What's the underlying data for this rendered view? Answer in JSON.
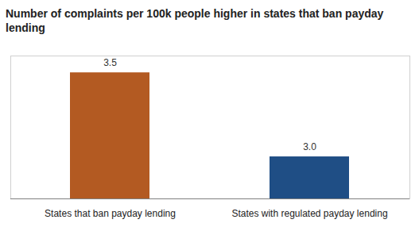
{
  "chart_data": {
    "type": "bar",
    "title": "Number of complaints per 100k people higher in states that ban payday lending",
    "categories": [
      "States that ban payday lending",
      "States with regulated payday lending"
    ],
    "values": [
      3.5,
      3.0
    ],
    "value_labels": [
      "3.5",
      "3.0"
    ],
    "colors": [
      "#b35a22",
      "#1f4e85"
    ],
    "ylim": [
      2.75,
      3.6
    ],
    "data_labels": true,
    "tick_labels": "x",
    "grid": false
  }
}
